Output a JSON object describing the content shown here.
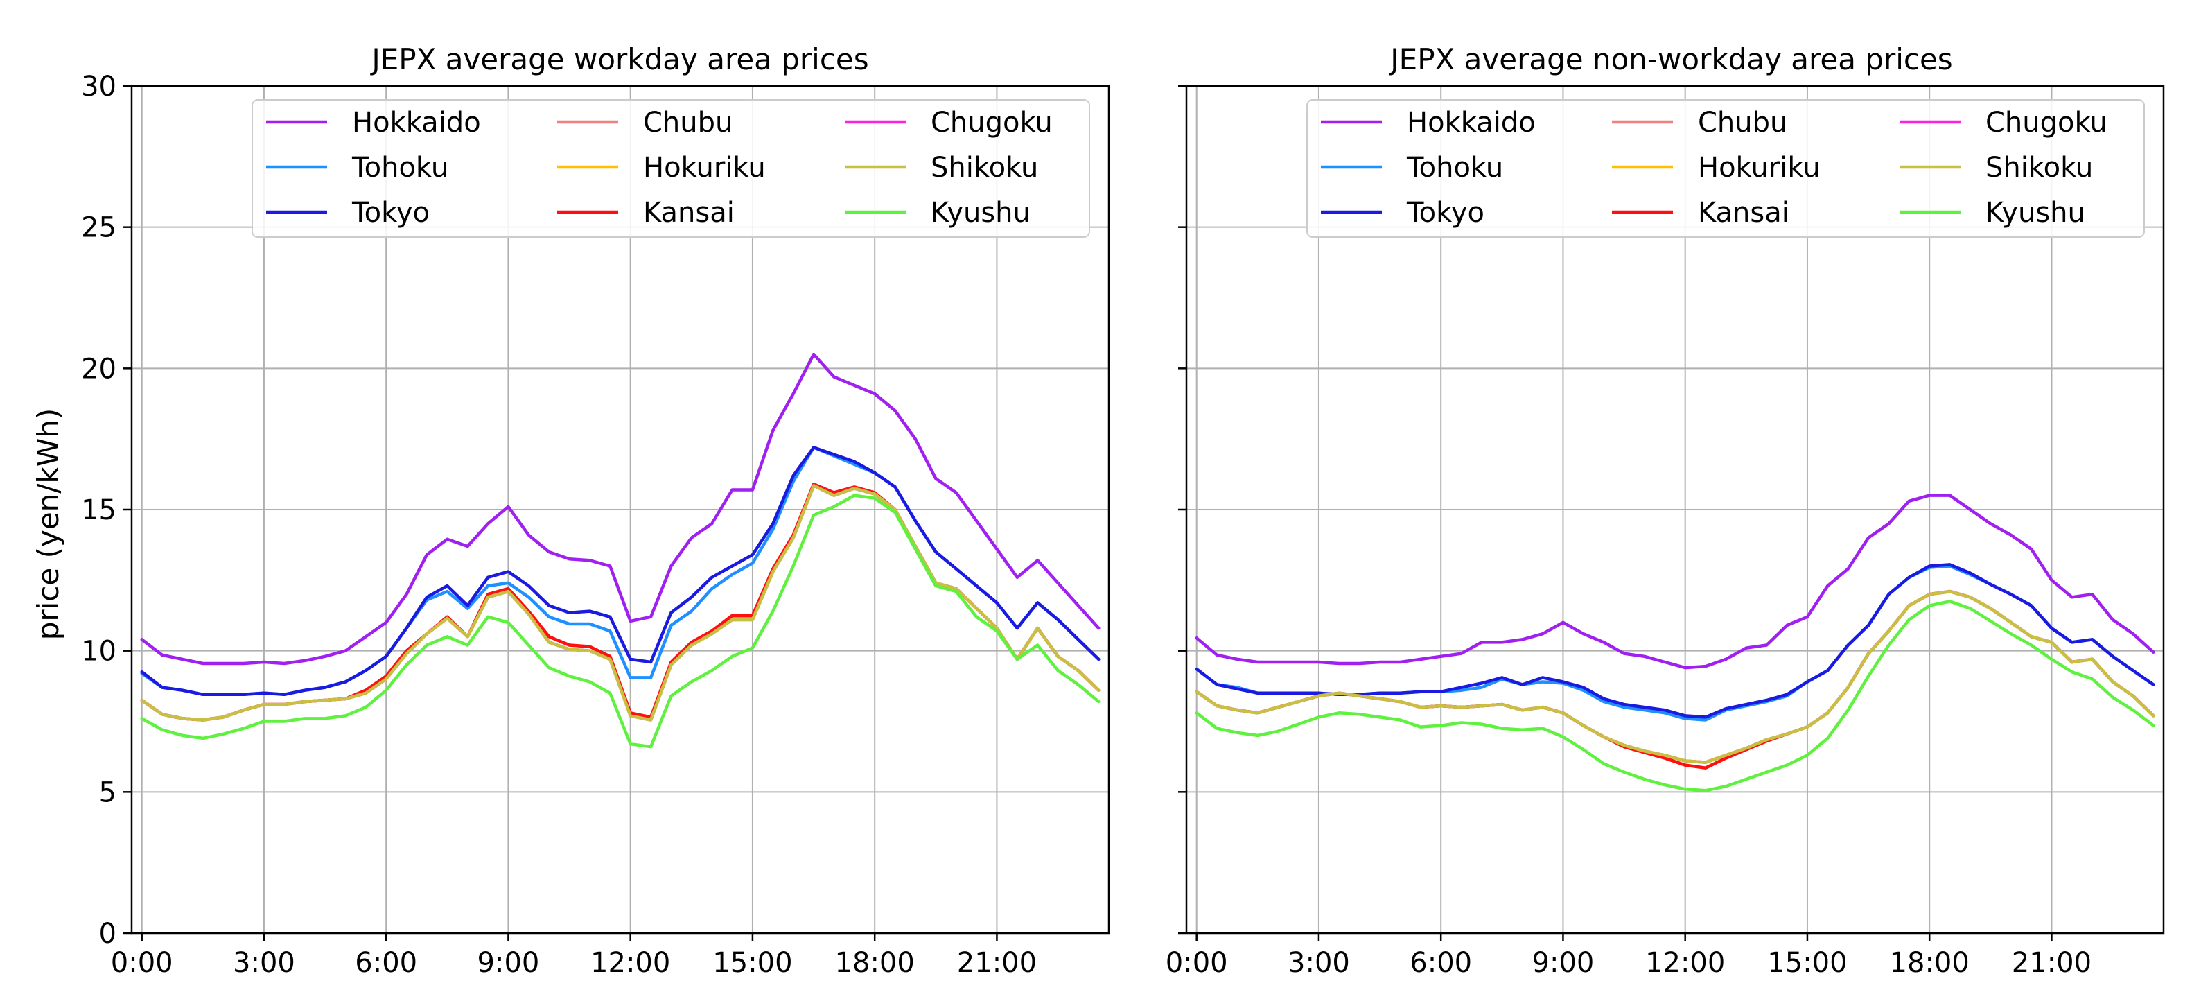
{
  "chart_data": [
    {
      "type": "line",
      "title": "JEPX average workday area prices",
      "xlabel": "",
      "ylabel": "price (yen/kWh)",
      "ylim": [
        0,
        30
      ],
      "xlim": [
        -0.25,
        23.75
      ],
      "yticks": [
        0,
        5,
        10,
        15,
        20,
        25,
        30
      ],
      "xticks": [
        0,
        3,
        6,
        9,
        12,
        15,
        18,
        21
      ],
      "xtick_labels": [
        "0:00",
        "3:00",
        "6:00",
        "9:00",
        "12:00",
        "15:00",
        "18:00",
        "21:00"
      ],
      "grid": true,
      "legend_position": "top-right",
      "legend_columns": 3,
      "x_step_hours": 0.5,
      "series": [
        {
          "name": "Hokkaido",
          "color": "#a020f0",
          "values": [
            10.4,
            9.85,
            9.7,
            9.55,
            9.55,
            9.55,
            9.6,
            9.55,
            9.65,
            9.8,
            10.0,
            10.5,
            11.0,
            12.0,
            13.4,
            13.95,
            13.7,
            14.5,
            15.1,
            14.1,
            13.5,
            13.25,
            13.2,
            13.0,
            11.05,
            11.2,
            13.0,
            14.0,
            14.5,
            15.7,
            15.7,
            17.8,
            19.1,
            20.5,
            19.7,
            19.4,
            19.1,
            18.5,
            17.5,
            16.1,
            15.6,
            14.6,
            13.6,
            12.6,
            13.2,
            12.4,
            11.6,
            10.8
          ]
        },
        {
          "name": "Tohoku",
          "color": "#1e90ff",
          "values": [
            9.2,
            8.7,
            8.6,
            8.45,
            8.45,
            8.45,
            8.5,
            8.45,
            8.6,
            8.7,
            8.9,
            9.3,
            9.8,
            10.8,
            11.8,
            12.1,
            11.5,
            12.3,
            12.4,
            11.9,
            11.2,
            10.95,
            10.95,
            10.7,
            9.05,
            9.05,
            10.9,
            11.4,
            12.2,
            12.7,
            13.1,
            14.3,
            16.0,
            17.2,
            16.9,
            16.6,
            16.3,
            15.8,
            14.6,
            13.5,
            12.9,
            12.3,
            11.7,
            10.8,
            11.7,
            11.1,
            10.4,
            9.7
          ]
        },
        {
          "name": "Tokyo",
          "color": "#1a1ae0",
          "values": [
            9.25,
            8.7,
            8.6,
            8.45,
            8.45,
            8.45,
            8.5,
            8.45,
            8.6,
            8.7,
            8.9,
            9.3,
            9.8,
            10.8,
            11.9,
            12.3,
            11.6,
            12.6,
            12.8,
            12.3,
            11.6,
            11.35,
            11.4,
            11.2,
            9.7,
            9.6,
            11.35,
            11.9,
            12.6,
            13.0,
            13.4,
            14.5,
            16.2,
            17.2,
            16.95,
            16.7,
            16.3,
            15.8,
            14.6,
            13.5,
            12.9,
            12.3,
            11.7,
            10.8,
            11.7,
            11.1,
            10.4,
            9.7
          ]
        },
        {
          "name": "Chubu",
          "color": "#f08080",
          "values": [
            8.25,
            7.75,
            7.6,
            7.55,
            7.65,
            7.9,
            8.1,
            8.1,
            8.2,
            8.25,
            8.3,
            8.6,
            9.1,
            10.0,
            10.6,
            11.2,
            10.5,
            12.0,
            12.2,
            11.4,
            10.5,
            10.2,
            10.15,
            9.8,
            7.8,
            7.6,
            9.6,
            10.3,
            10.7,
            11.2,
            11.2,
            12.9,
            14.1,
            15.9,
            15.6,
            15.8,
            15.6,
            15.0,
            13.7,
            12.4,
            12.2,
            11.5,
            10.8,
            9.7,
            10.8,
            9.8,
            9.3,
            8.6
          ]
        },
        {
          "name": "Hokuriku",
          "color": "#ffc000",
          "values": [
            8.25,
            7.75,
            7.6,
            7.55,
            7.65,
            7.9,
            8.1,
            8.1,
            8.2,
            8.25,
            8.3,
            8.5,
            9.0,
            9.9,
            10.6,
            11.15,
            10.5,
            11.9,
            12.1,
            11.3,
            10.3,
            10.05,
            10.0,
            9.7,
            7.7,
            7.55,
            9.5,
            10.2,
            10.6,
            11.1,
            11.1,
            12.8,
            14.0,
            15.85,
            15.5,
            15.75,
            15.55,
            15.0,
            13.7,
            12.4,
            12.2,
            11.5,
            10.8,
            9.7,
            10.8,
            9.8,
            9.3,
            8.6
          ]
        },
        {
          "name": "Kansai",
          "color": "#ff1010",
          "values": [
            8.25,
            7.75,
            7.6,
            7.55,
            7.65,
            7.9,
            8.1,
            8.1,
            8.2,
            8.25,
            8.3,
            8.6,
            9.1,
            10.0,
            10.6,
            11.2,
            10.5,
            12.0,
            12.2,
            11.4,
            10.5,
            10.2,
            10.15,
            9.8,
            7.8,
            7.65,
            9.6,
            10.3,
            10.7,
            11.25,
            11.25,
            12.9,
            14.1,
            15.9,
            15.6,
            15.8,
            15.6,
            15.0,
            13.7,
            12.4,
            12.2,
            11.5,
            10.8,
            9.7,
            10.8,
            9.8,
            9.3,
            8.6
          ]
        },
        {
          "name": "Chugoku",
          "color": "#ff20e0",
          "values": [
            8.25,
            7.75,
            7.6,
            7.55,
            7.65,
            7.9,
            8.1,
            8.1,
            8.2,
            8.25,
            8.3,
            8.5,
            9.0,
            9.9,
            10.6,
            11.15,
            10.5,
            11.9,
            12.1,
            11.3,
            10.3,
            10.05,
            10.0,
            9.7,
            7.7,
            7.55,
            9.5,
            10.2,
            10.6,
            11.1,
            11.1,
            12.8,
            14.0,
            15.85,
            15.5,
            15.75,
            15.55,
            15.0,
            13.7,
            12.4,
            12.2,
            11.5,
            10.8,
            9.7,
            10.8,
            9.8,
            9.3,
            8.6
          ]
        },
        {
          "name": "Shikoku",
          "color": "#c8c040",
          "values": [
            8.25,
            7.75,
            7.6,
            7.55,
            7.65,
            7.9,
            8.1,
            8.1,
            8.2,
            8.25,
            8.3,
            8.5,
            9.0,
            9.9,
            10.6,
            11.15,
            10.5,
            11.9,
            12.1,
            11.3,
            10.3,
            10.05,
            10.0,
            9.7,
            7.7,
            7.55,
            9.5,
            10.2,
            10.6,
            11.1,
            11.1,
            12.8,
            14.0,
            15.85,
            15.5,
            15.75,
            15.55,
            15.0,
            13.7,
            12.4,
            12.2,
            11.5,
            10.8,
            9.7,
            10.8,
            9.8,
            9.3,
            8.6
          ]
        },
        {
          "name": "Kyushu",
          "color": "#60f040",
          "values": [
            7.6,
            7.2,
            7.0,
            6.9,
            7.05,
            7.25,
            7.5,
            7.5,
            7.6,
            7.6,
            7.7,
            8.0,
            8.6,
            9.5,
            10.2,
            10.5,
            10.2,
            11.2,
            11.0,
            10.2,
            9.4,
            9.1,
            8.9,
            8.5,
            6.7,
            6.6,
            8.4,
            8.9,
            9.3,
            9.8,
            10.1,
            11.4,
            13.0,
            14.8,
            15.1,
            15.5,
            15.4,
            14.9,
            13.6,
            12.3,
            12.1,
            11.2,
            10.7,
            9.7,
            10.2,
            9.3,
            8.8,
            8.2
          ]
        }
      ]
    },
    {
      "type": "line",
      "title": "JEPX average non-workday area prices",
      "xlabel": "",
      "ylabel": "",
      "ylim": [
        0,
        30
      ],
      "xlim": [
        -0.25,
        23.75
      ],
      "yticks": [
        0,
        5,
        10,
        15,
        20,
        25,
        30
      ],
      "xticks": [
        0,
        3,
        6,
        9,
        12,
        15,
        18,
        21
      ],
      "xtick_labels": [
        "0:00",
        "3:00",
        "6:00",
        "9:00",
        "12:00",
        "15:00",
        "18:00",
        "21:00"
      ],
      "grid": true,
      "legend_position": "top-right",
      "legend_columns": 3,
      "x_step_hours": 0.5,
      "series": [
        {
          "name": "Hokkaido",
          "color": "#a020f0",
          "values": [
            10.45,
            9.85,
            9.7,
            9.6,
            9.6,
            9.6,
            9.6,
            9.55,
            9.55,
            9.6,
            9.6,
            9.7,
            9.8,
            9.9,
            10.3,
            10.3,
            10.4,
            10.6,
            11.0,
            10.6,
            10.3,
            9.9,
            9.8,
            9.6,
            9.4,
            9.45,
            9.7,
            10.1,
            10.2,
            10.9,
            11.2,
            12.3,
            12.9,
            14.0,
            14.5,
            15.3,
            15.5,
            15.5,
            15.0,
            14.5,
            14.1,
            13.6,
            12.5,
            11.9,
            12.0,
            11.1,
            10.6,
            9.95
          ]
        },
        {
          "name": "Tohoku",
          "color": "#1e90ff",
          "values": [
            9.35,
            8.8,
            8.7,
            8.5,
            8.5,
            8.5,
            8.5,
            8.45,
            8.45,
            8.5,
            8.5,
            8.55,
            8.55,
            8.6,
            8.7,
            9.0,
            8.8,
            8.9,
            8.85,
            8.6,
            8.2,
            8.0,
            7.9,
            7.8,
            7.6,
            7.55,
            7.9,
            8.05,
            8.2,
            8.4,
            8.9,
            9.3,
            10.2,
            10.9,
            12.0,
            12.6,
            12.95,
            13.0,
            12.7,
            12.35,
            12.0,
            11.6,
            10.8,
            10.3,
            10.4,
            9.8,
            9.3,
            8.8
          ]
        },
        {
          "name": "Tokyo",
          "color": "#1a1ae0",
          "values": [
            9.35,
            8.8,
            8.65,
            8.5,
            8.5,
            8.5,
            8.5,
            8.45,
            8.45,
            8.5,
            8.5,
            8.55,
            8.55,
            8.7,
            8.85,
            9.05,
            8.8,
            9.05,
            8.9,
            8.7,
            8.3,
            8.1,
            8.0,
            7.9,
            7.7,
            7.65,
            7.95,
            8.1,
            8.25,
            8.45,
            8.9,
            9.3,
            10.2,
            10.9,
            12.0,
            12.6,
            13.0,
            13.05,
            12.75,
            12.35,
            12.0,
            11.6,
            10.8,
            10.3,
            10.4,
            9.8,
            9.3,
            8.8
          ]
        },
        {
          "name": "Chubu",
          "color": "#f08080",
          "values": [
            8.55,
            8.05,
            7.9,
            7.8,
            8.0,
            8.2,
            8.4,
            8.5,
            8.4,
            8.3,
            8.2,
            8.0,
            8.05,
            8.0,
            8.05,
            8.1,
            7.9,
            8.0,
            7.8,
            7.35,
            6.95,
            6.6,
            6.4,
            6.2,
            5.95,
            5.85,
            6.2,
            6.5,
            6.8,
            7.05,
            7.3,
            7.8,
            8.7,
            9.9,
            10.7,
            11.6,
            12.0,
            12.1,
            11.9,
            11.5,
            11.0,
            10.5,
            10.3,
            9.6,
            9.7,
            8.9,
            8.4,
            7.7
          ]
        },
        {
          "name": "Hokuriku",
          "color": "#ffc000",
          "values": [
            8.55,
            8.05,
            7.9,
            7.8,
            8.0,
            8.2,
            8.4,
            8.5,
            8.4,
            8.3,
            8.2,
            8.0,
            8.05,
            8.0,
            8.05,
            8.1,
            7.9,
            8.0,
            7.8,
            7.35,
            6.95,
            6.65,
            6.45,
            6.3,
            6.1,
            6.05,
            6.3,
            6.55,
            6.85,
            7.05,
            7.3,
            7.8,
            8.7,
            9.9,
            10.7,
            11.6,
            12.0,
            12.1,
            11.9,
            11.5,
            11.0,
            10.5,
            10.3,
            9.6,
            9.7,
            8.9,
            8.4,
            7.7
          ]
        },
        {
          "name": "Kansai",
          "color": "#ff1010",
          "values": [
            8.55,
            8.05,
            7.9,
            7.8,
            8.0,
            8.2,
            8.4,
            8.5,
            8.4,
            8.3,
            8.2,
            8.0,
            8.05,
            8.0,
            8.05,
            8.1,
            7.9,
            8.0,
            7.8,
            7.35,
            6.95,
            6.6,
            6.4,
            6.2,
            5.95,
            5.85,
            6.2,
            6.5,
            6.8,
            7.05,
            7.3,
            7.8,
            8.7,
            9.9,
            10.7,
            11.6,
            12.0,
            12.1,
            11.9,
            11.5,
            11.0,
            10.5,
            10.3,
            9.6,
            9.7,
            8.9,
            8.4,
            7.7
          ]
        },
        {
          "name": "Chugoku",
          "color": "#ff20e0",
          "values": [
            8.55,
            8.05,
            7.9,
            7.8,
            8.0,
            8.2,
            8.4,
            8.5,
            8.4,
            8.3,
            8.2,
            8.0,
            8.05,
            8.0,
            8.05,
            8.1,
            7.9,
            8.0,
            7.8,
            7.35,
            6.95,
            6.65,
            6.45,
            6.3,
            6.1,
            6.05,
            6.3,
            6.55,
            6.85,
            7.05,
            7.3,
            7.8,
            8.7,
            9.9,
            10.7,
            11.6,
            12.0,
            12.1,
            11.9,
            11.5,
            11.0,
            10.5,
            10.3,
            9.6,
            9.7,
            8.9,
            8.4,
            7.7
          ]
        },
        {
          "name": "Shikoku",
          "color": "#c8c040",
          "values": [
            8.55,
            8.05,
            7.9,
            7.8,
            8.0,
            8.2,
            8.4,
            8.5,
            8.4,
            8.3,
            8.2,
            8.0,
            8.05,
            8.0,
            8.05,
            8.1,
            7.9,
            8.0,
            7.8,
            7.35,
            6.95,
            6.65,
            6.45,
            6.3,
            6.1,
            6.05,
            6.3,
            6.55,
            6.85,
            7.05,
            7.3,
            7.8,
            8.7,
            9.9,
            10.7,
            11.6,
            12.0,
            12.1,
            11.9,
            11.5,
            11.0,
            10.5,
            10.3,
            9.6,
            9.7,
            8.9,
            8.4,
            7.7
          ]
        },
        {
          "name": "Kyushu",
          "color": "#60f040",
          "values": [
            7.8,
            7.25,
            7.1,
            7.0,
            7.15,
            7.4,
            7.65,
            7.8,
            7.75,
            7.65,
            7.55,
            7.3,
            7.35,
            7.45,
            7.4,
            7.25,
            7.2,
            7.25,
            6.95,
            6.5,
            6.0,
            5.7,
            5.45,
            5.25,
            5.1,
            5.05,
            5.2,
            5.45,
            5.7,
            5.95,
            6.3,
            6.9,
            7.9,
            9.1,
            10.2,
            11.1,
            11.6,
            11.75,
            11.5,
            11.05,
            10.6,
            10.2,
            9.7,
            9.25,
            9.0,
            8.35,
            7.9,
            7.35
          ]
        }
      ]
    }
  ]
}
